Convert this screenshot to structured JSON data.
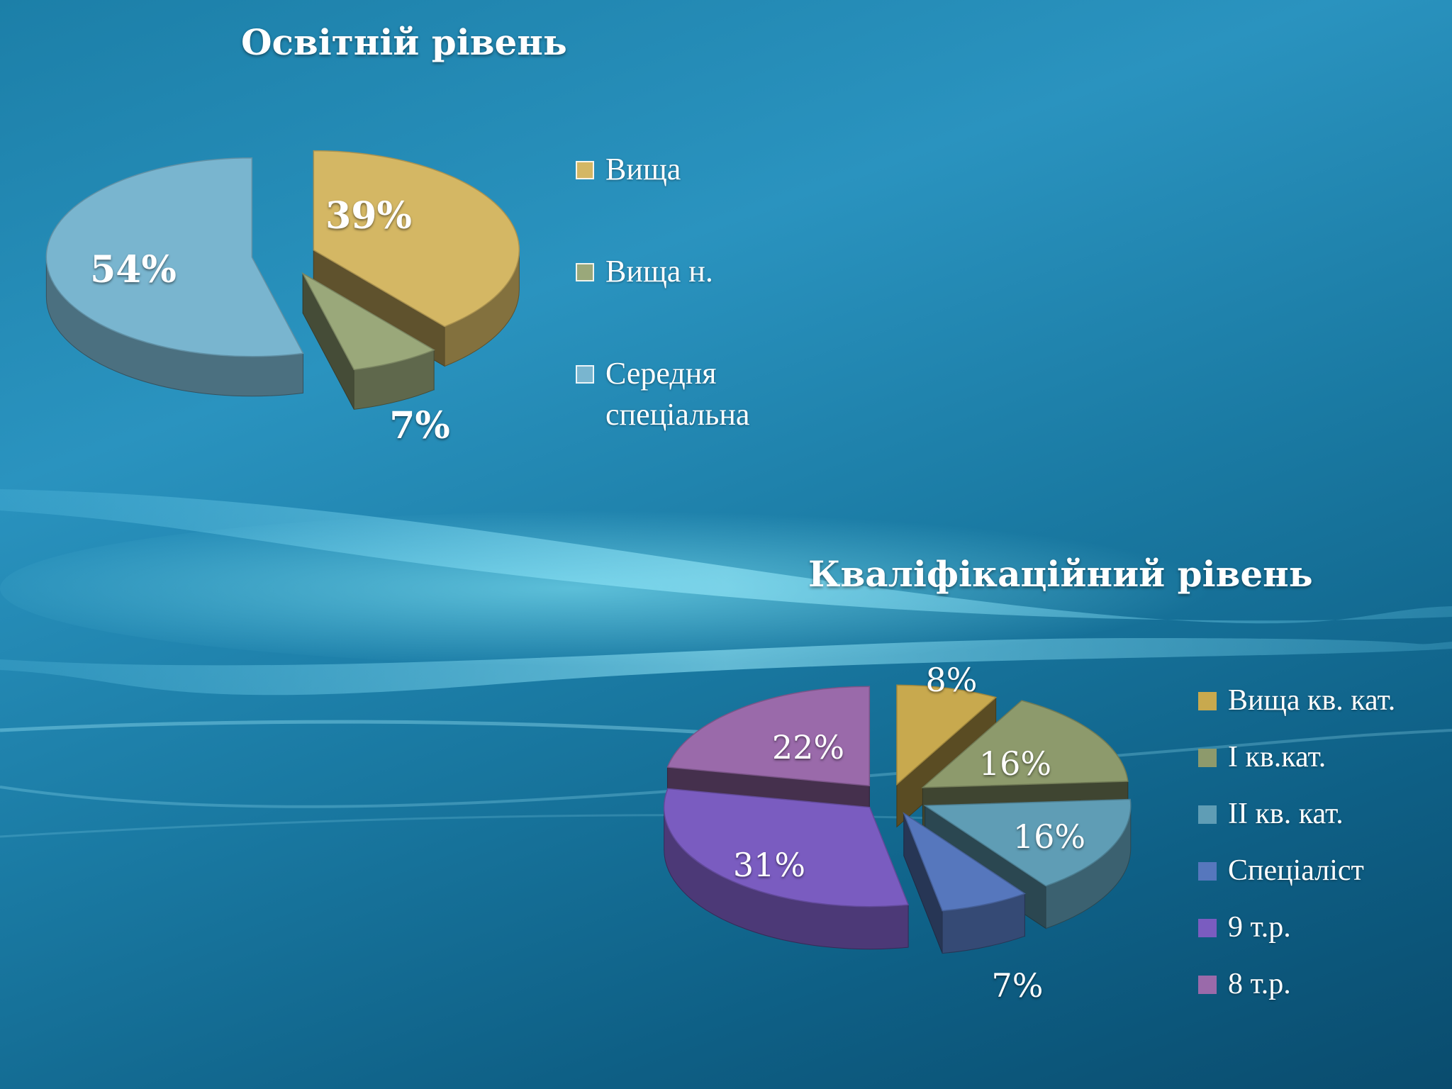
{
  "colors": {
    "background_top": "#2a93bf",
    "background_bottom": "#0a4c6e",
    "text": "#ffffff"
  },
  "chart_data": [
    {
      "type": "pie",
      "style": "3d-exploded",
      "title": "Освітній рівень",
      "categories": [
        "Вища",
        "Вища н.",
        "Середня спеціальна"
      ],
      "values": [
        39,
        7,
        54
      ],
      "labels": [
        "39%",
        "7%",
        "54%"
      ],
      "colors": [
        "#d4b764",
        "#9aa87a",
        "#79b5cf"
      ],
      "legend_position": "right"
    },
    {
      "type": "pie",
      "style": "3d-exploded",
      "title": "Кваліфікаційний рівень",
      "categories": [
        "Вища кв. кат.",
        "І кв.кат.",
        "ІІ кв. кат.",
        "Спеціаліст",
        "9 т.р.",
        "8 т.р."
      ],
      "values": [
        8,
        16,
        16,
        7,
        31,
        22
      ],
      "labels": [
        "8%",
        "16%",
        "16%",
        "7%",
        "31%",
        "22%"
      ],
      "colors": [
        "#c8a94e",
        "#8d9a6c",
        "#5f9db5",
        "#5677bd",
        "#7a5cc0",
        "#9a6aaa"
      ],
      "legend_position": "right"
    }
  ]
}
